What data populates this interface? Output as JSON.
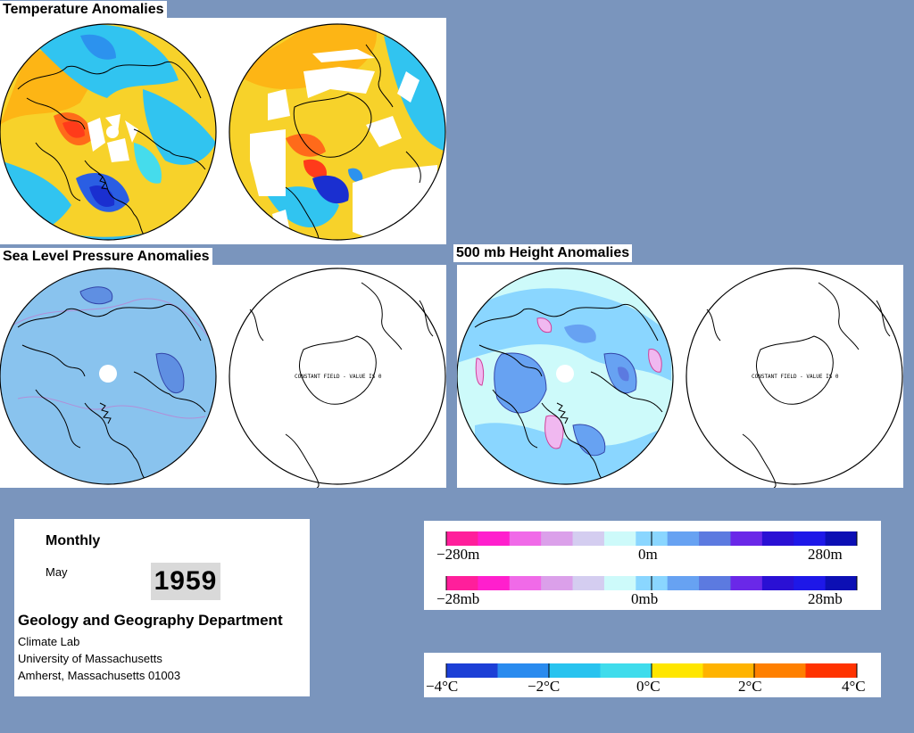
{
  "titles": {
    "temperature": "Temperature Anomalies",
    "slp": "Sea Level Pressure Anomalies",
    "height500": "500 mb Height Anomalies"
  },
  "map_notes": {
    "slp_south": "CONSTANT FIELD - VALUE IS 0",
    "height_south": "CONSTANT FIELD - VALUE IS 0"
  },
  "info": {
    "period": "Monthly",
    "month": "May",
    "year": "1959",
    "department": "Geology and Geography Department",
    "lab": "Climate Lab",
    "university": "University of Massachusetts",
    "address": "Amherst, Massachusetts 01003"
  },
  "legends": {
    "height": {
      "min": "−280m",
      "mid": "0m",
      "max": "280m"
    },
    "pressure": {
      "min": "−28mb",
      "mid": "0mb",
      "max": "28mb"
    },
    "temperature": {
      "t1": "−4°C",
      "t2": "−2°C",
      "t3": "0°C",
      "t4": "2°C",
      "t5": "4°C"
    }
  },
  "colors": {
    "background": "#7a95bd",
    "anomaly_scale": [
      "#ff1f9b",
      "#ff1fcd",
      "#f06ae8",
      "#dba0ea",
      "#d4cdf0",
      "#cdfafa",
      "#8ad6ff",
      "#67a2f2",
      "#5c7ae0",
      "#6a28e8",
      "#2a10d4",
      "#1e18e8",
      "#0c0fb4"
    ],
    "temperature_scale": [
      "#1c3fd6",
      "#2a8bef",
      "#28c3ef",
      "#3fdcec",
      "#ffe600",
      "#ffb300",
      "#ff8000",
      "#ff3300"
    ]
  },
  "map_legend": "colors-by-anomaly"
}
